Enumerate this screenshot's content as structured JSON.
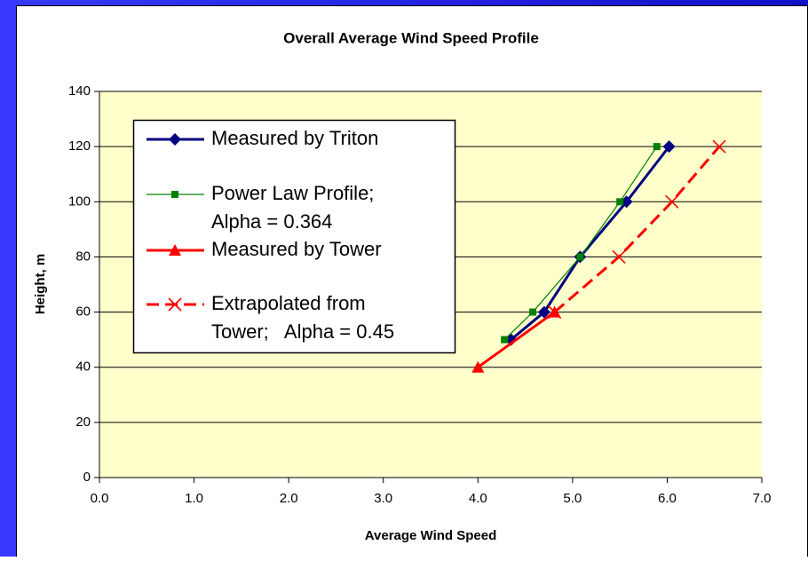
{
  "chart_data": {
    "type": "line",
    "title": "Overall Average Wind Speed Profile",
    "x_label": "Average Wind Speed",
    "y_label": "Height, m",
    "xlim": [
      0,
      7
    ],
    "ylim": [
      0,
      140
    ],
    "xticks": [
      {
        "value": 0,
        "label": "0.0"
      },
      {
        "value": 1,
        "label": "1.0"
      },
      {
        "value": 2,
        "label": "2.0"
      },
      {
        "value": 3,
        "label": "3.0"
      },
      {
        "value": 4,
        "label": "4.0"
      },
      {
        "value": 5,
        "label": "5.0"
      },
      {
        "value": 6,
        "label": "6.0"
      },
      {
        "value": 7,
        "label": "7.0"
      }
    ],
    "yticks": [
      0,
      20,
      40,
      60,
      80,
      100,
      120,
      140
    ],
    "grid": true,
    "series": [
      {
        "name": "Measured by Triton",
        "color": "#000080",
        "marker": "diamond",
        "dashed": false,
        "x": [
          4.35,
          4.7,
          5.08,
          5.57,
          6.02
        ],
        "values": [
          50,
          60,
          80,
          100,
          120
        ]
      },
      {
        "name": "Power Law Profile;\nAlpha = 0.364",
        "color": "#008000",
        "marker": "square",
        "dashed": false,
        "x": [
          4.28,
          4.58,
          5.08,
          5.5,
          5.89
        ],
        "values": [
          50,
          60,
          80,
          100,
          120
        ]
      },
      {
        "name": "Measured by Tower",
        "color": "#ff0000",
        "marker": "triangle",
        "dashed": false,
        "x": [
          4.0,
          4.81
        ],
        "values": [
          40,
          60
        ]
      },
      {
        "name": "Extrapolated from\nTower;   Alpha = 0.45",
        "color": "#ff0000",
        "marker": "x",
        "dashed": true,
        "x": [
          4.81,
          5.49,
          6.05,
          6.55
        ],
        "values": [
          60,
          80,
          100,
          120
        ]
      }
    ]
  }
}
